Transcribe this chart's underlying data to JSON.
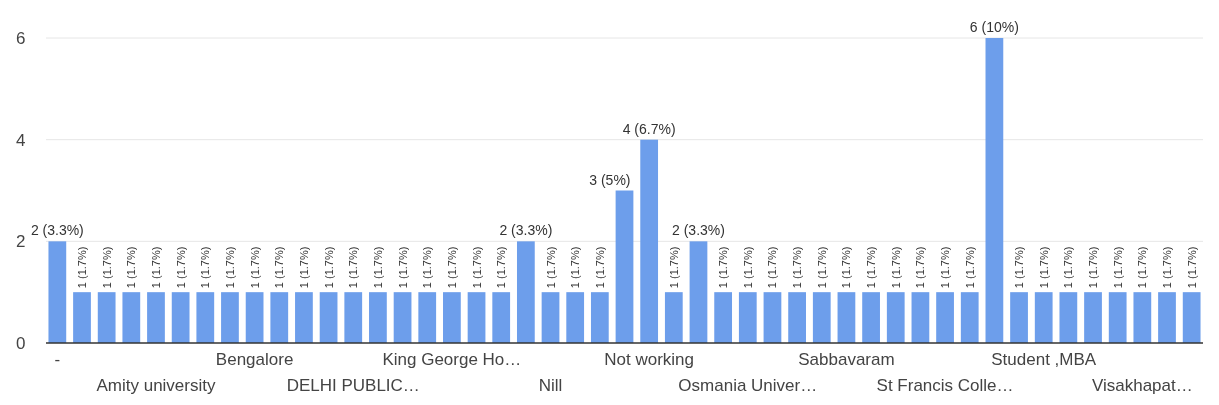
{
  "chart_data": {
    "type": "bar",
    "categories": [
      "-",
      null,
      null,
      null,
      "Amity university",
      null,
      null,
      null,
      "Bengalore",
      null,
      null,
      null,
      "DELHI PUBLIC…",
      null,
      null,
      null,
      "King George Ho…",
      null,
      null,
      null,
      "Nill",
      null,
      null,
      null,
      "Not working",
      null,
      null,
      null,
      "Osmania Univer…",
      null,
      null,
      null,
      "Sabbavaram",
      null,
      null,
      null,
      "St Francis Colle…",
      null,
      null,
      null,
      "Student ,MBA",
      null,
      null,
      null,
      "Visakhapat…",
      null,
      null
    ],
    "values": [
      2,
      1,
      1,
      1,
      1,
      1,
      1,
      1,
      1,
      1,
      1,
      1,
      1,
      1,
      1,
      1,
      1,
      1,
      1,
      2,
      1,
      1,
      1,
      3,
      4,
      1,
      2,
      1,
      1,
      1,
      1,
      1,
      1,
      1,
      1,
      1,
      1,
      1,
      6,
      1,
      1,
      1,
      1,
      1,
      1,
      1,
      1
    ],
    "value_labels": [
      "2 (3.3%)",
      "1 (1.7%)",
      "1 (1.7%)",
      "1 (1.7%)",
      "1 (1.7%)",
      "1 (1.7%)",
      "1 (1.7%)",
      "1 (1.7%)",
      "1 (1.7%)",
      "1 (1.7%)",
      "1 (1.7%)",
      "1 (1.7%)",
      "1 (1.7%)",
      "1 (1.7%)",
      "1 (1.7%)",
      "1 (1.7%)",
      "1 (1.7%)",
      "1 (1.7%)",
      "1 (1.7%)",
      "2 (3.3%)",
      "1 (1.7%)",
      "1 (1.7%)",
      "1 (1.7%)",
      "3 (5%)",
      "4 (6.7%)",
      "1 (1.7%)",
      "2 (3.3%)",
      "1 (1.7%)",
      "1 (1.7%)",
      "1 (1.7%)",
      "1 (1.7%)",
      "1 (1.7%)",
      "1 (1.7%)",
      "1 (1.7%)",
      "1 (1.7%)",
      "1 (1.7%)",
      "1 (1.7%)",
      "1 (1.7%)",
      "6 (10%)",
      "1 (1.7%)",
      "1 (1.7%)",
      "1 (1.7%)",
      "1 (1.7%)",
      "1 (1.7%)",
      "1 (1.7%)",
      "1 (1.7%)",
      "1 (1.7%)"
    ],
    "color": "#6d9eeb",
    "ylim": [
      0,
      6
    ],
    "yticks": [
      0,
      2,
      4,
      6
    ],
    "grid": true
  }
}
